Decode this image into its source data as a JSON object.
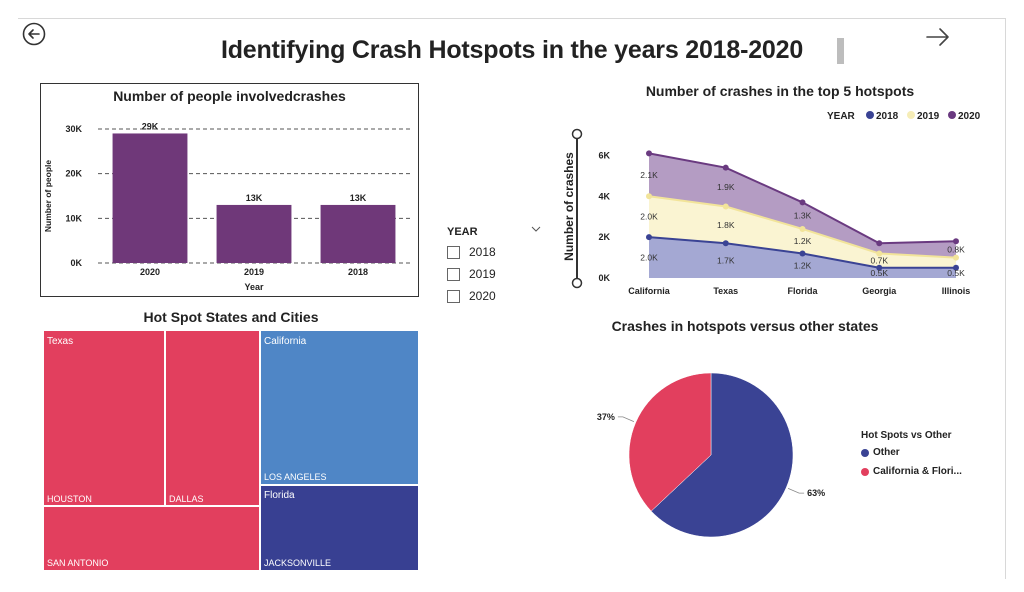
{
  "page": {
    "title": "Identifying Crash Hotspots in the years 2018-2020"
  },
  "slicer": {
    "title": "YEAR",
    "options": [
      "2018",
      "2019",
      "2020"
    ]
  },
  "colors": {
    "purple": "#6f3879",
    "c2018": "#3a4394",
    "c2019": "#f6edb7",
    "c2020": "#6a3a80",
    "texas": "#e23f5e",
    "california": "#4f86c6",
    "florida": "#384092",
    "other": "#3a4394",
    "hotspot": "#e23f5e"
  },
  "chart_data": [
    {
      "id": "people",
      "type": "bar",
      "title": "Number of people involvedcrashes",
      "xlabel": "Year",
      "ylabel": "Number of people",
      "categories": [
        "2020",
        "2019",
        "2018"
      ],
      "values": [
        29000,
        13000,
        13000
      ],
      "data_labels": [
        "29K",
        "13K",
        "13K"
      ],
      "yticks": [
        0,
        10000,
        20000,
        30000
      ],
      "ytick_labels": [
        "0K",
        "10K",
        "20K",
        "30K"
      ],
      "ylim": [
        0,
        30000
      ],
      "grid": true
    },
    {
      "id": "hotspots",
      "type": "area",
      "title": "Number of crashes in the top 5 hotspots",
      "ylabel": "Number of crashes",
      "legend_title": "YEAR",
      "categories": [
        "California",
        "Texas",
        "Florida",
        "Georgia",
        "Illinois"
      ],
      "series": [
        {
          "name": "2018",
          "values": [
            2000,
            1700,
            1200,
            500,
            500
          ],
          "labels": [
            "2.0K",
            "1.7K",
            "1.2K",
            "0.5K",
            "0.5K"
          ]
        },
        {
          "name": "2019",
          "values": [
            2000,
            1800,
            1200,
            700,
            500
          ],
          "labels": [
            "2.0K",
            "1.8K",
            "1.2K",
            "0.7K",
            ""
          ]
        },
        {
          "name": "2020",
          "values": [
            2100,
            1900,
            1300,
            500,
            800
          ],
          "labels": [
            "2.1K",
            "1.9K",
            "1.3K",
            "",
            "0.8K"
          ]
        }
      ],
      "yticks": [
        0,
        2000,
        4000,
        6000
      ],
      "ytick_labels": [
        "0K",
        "2K",
        "4K",
        "6K"
      ],
      "ylim": [
        0,
        7000
      ],
      "legend_position": "top-right",
      "stacked": true
    },
    {
      "id": "treemap",
      "type": "treemap",
      "title": "Hot Spot States and Cities",
      "groups": [
        {
          "name": "Texas",
          "cities": [
            "HOUSTON",
            "DALLAS",
            "SAN ANTONIO"
          ]
        },
        {
          "name": "California",
          "cities": [
            "LOS ANGELES"
          ]
        },
        {
          "name": "Florida",
          "cities": [
            "JACKSONVILLE"
          ]
        }
      ]
    },
    {
      "id": "share",
      "type": "pie",
      "title": "Crashes in hotspots versus other states",
      "legend_title": "Hot Spots vs Other",
      "labels": [
        "Other",
        "California & Flori..."
      ],
      "values": [
        63,
        37
      ],
      "value_labels": [
        "63%",
        "37%"
      ],
      "legend_position": "right"
    }
  ]
}
